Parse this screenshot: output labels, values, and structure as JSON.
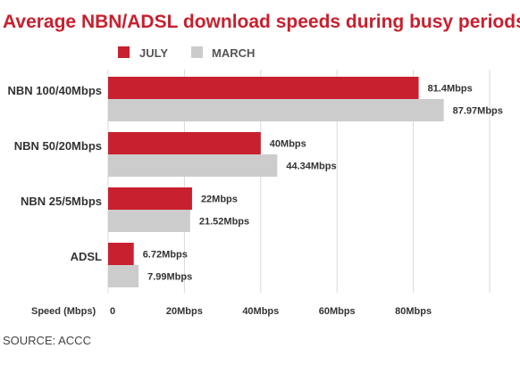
{
  "chart_data": {
    "type": "bar",
    "orientation": "horizontal",
    "title": "Average NBN/ADSL download speeds during busy periods",
    "xlabel": "Speed (Mbps)",
    "categories": [
      "NBN 100/40Mbps",
      "NBN 50/20Mbps",
      "NBN 25/5Mbps",
      "ADSL"
    ],
    "series": [
      {
        "name": "JULY",
        "color": "#c8202f",
        "values": [
          81.4,
          40,
          22,
          6.72
        ],
        "labels": [
          "81.4Mbps",
          "40Mbps",
          "22Mbps",
          "6.72Mbps"
        ]
      },
      {
        "name": "MARCH",
        "color": "#cccccc",
        "values": [
          87.97,
          44.34,
          21.52,
          7.99
        ],
        "labels": [
          "87.97Mbps",
          "44.34Mbps",
          "21.52Mbps",
          "7.99Mbps"
        ]
      }
    ],
    "xlim": [
      0,
      100
    ],
    "ticks": [
      0,
      20,
      40,
      60,
      80
    ],
    "tick_labels": [
      "0",
      "20Mbps",
      "40Mbps",
      "60Mbps",
      "80Mbps"
    ],
    "grid": "vertical",
    "legend": "top-left",
    "source": "SOURCE: ACCC"
  }
}
